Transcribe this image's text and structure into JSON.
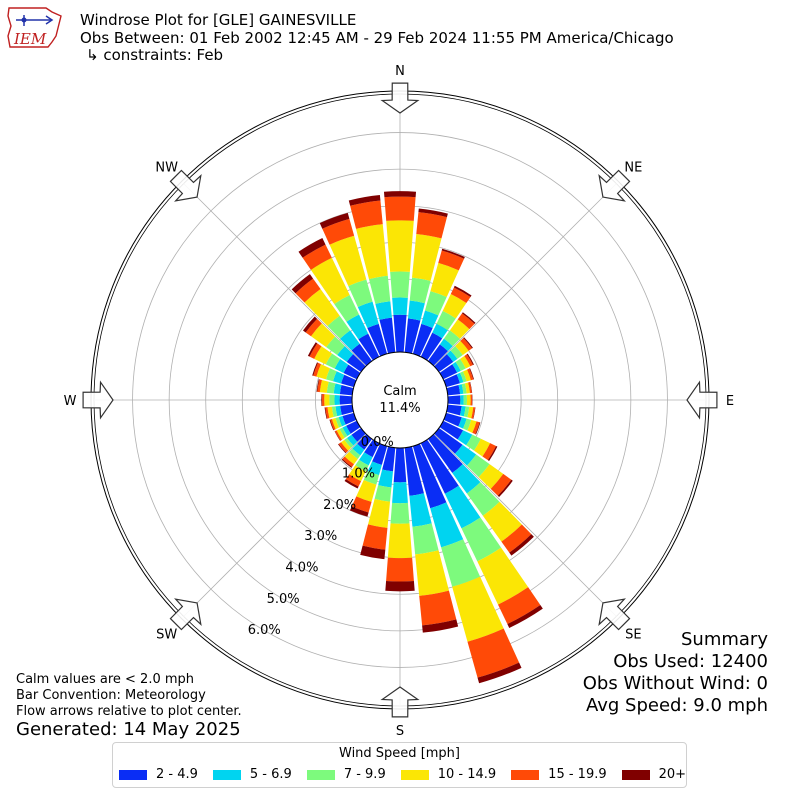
{
  "header": {
    "title": "Windrose Plot for [GLE] GAINESVILLE",
    "obs_between": "Obs Between: 01 Feb 2002 12:45 AM - 29 Feb 2024 11:55 PM America/Chicago",
    "constraints": "↳ constraints: Feb"
  },
  "logo": {
    "text": "IEM"
  },
  "notes": {
    "calm_note": "Calm values are < 2.0 mph",
    "bar_convention": "Bar Convention: Meteorology",
    "flow_arrows": "Flow arrows relative to plot center.",
    "generated": "Generated: 14 May 2025"
  },
  "summary": {
    "title": "Summary",
    "obs_used": "Obs Used: 12400",
    "obs_without_wind": "Obs Without Wind: 0",
    "avg_speed": "Avg Speed: 9.0 mph"
  },
  "colors": {
    "bins": [
      "#0a2df5",
      "#00d4f0",
      "#7dfa7d",
      "#fbe605",
      "#ff4a07",
      "#800000"
    ]
  },
  "chart_data": {
    "type": "windrose",
    "direction_labels": [
      "N",
      "NE",
      "E",
      "SE",
      "S",
      "SW",
      "W",
      "NW"
    ],
    "direction_label_angles": [
      0,
      45,
      90,
      135,
      180,
      225,
      270,
      315
    ],
    "radial_tick_labels": [
      "0.0%",
      "1.0%",
      "2.0%",
      "3.0%",
      "4.0%",
      "5.0%",
      "6.0%"
    ],
    "radial_ticks": [
      0,
      1,
      2,
      3,
      4,
      5,
      6
    ],
    "rmax": 7.0,
    "calm_label": "Calm",
    "calm_value": "11.4%",
    "legend_title": "Wind Speed [mph]",
    "speed_bins": [
      "2 - 4.9",
      "5 - 6.9",
      "7 - 9.9",
      "10 - 14.9",
      "15 - 19.9",
      "20+"
    ],
    "directions_deg": [
      0,
      10,
      20,
      30,
      40,
      50,
      60,
      70,
      80,
      90,
      100,
      110,
      120,
      130,
      140,
      150,
      160,
      170,
      180,
      190,
      200,
      210,
      220,
      230,
      240,
      250,
      260,
      270,
      280,
      290,
      300,
      310,
      320,
      330,
      340,
      350
    ],
    "cumulative_percent": [
      [
        1.02,
        1.49,
        2.2,
        3.6,
        4.25,
        4.4
      ],
      [
        0.93,
        1.42,
        2.05,
        3.25,
        3.85,
        3.95
      ],
      [
        0.85,
        1.23,
        1.78,
        2.58,
        2.93,
        2.98
      ],
      [
        0.73,
        1.0,
        1.39,
        1.9,
        2.1,
        2.15
      ],
      [
        0.56,
        0.75,
        1.03,
        1.4,
        1.6,
        1.64
      ],
      [
        0.48,
        0.62,
        0.8,
        1.0,
        1.11,
        1.14
      ],
      [
        0.42,
        0.53,
        0.68,
        0.82,
        0.9,
        0.93
      ],
      [
        0.39,
        0.49,
        0.58,
        0.7,
        0.77,
        0.79
      ],
      [
        0.34,
        0.43,
        0.52,
        0.61,
        0.66,
        0.67
      ],
      [
        0.34,
        0.43,
        0.52,
        0.62,
        0.66,
        0.67
      ],
      [
        0.38,
        0.49,
        0.59,
        0.7,
        0.75,
        0.76
      ],
      [
        0.44,
        0.58,
        0.71,
        0.86,
        0.95,
        0.97
      ],
      [
        0.6,
        0.88,
        1.14,
        1.42,
        1.6,
        1.64
      ],
      [
        0.79,
        1.25,
        1.7,
        2.16,
        2.43,
        2.48
      ],
      [
        1.14,
        1.83,
        2.58,
        3.45,
        3.82,
        3.92
      ],
      [
        1.53,
        2.58,
        3.58,
        4.89,
        5.48,
        5.6
      ],
      [
        1.76,
        2.87,
        3.99,
        5.55,
        6.57,
        6.73
      ],
      [
        1.32,
        2.17,
        2.93,
        4.07,
        4.88,
        5.08
      ],
      [
        0.94,
        1.51,
        2.07,
        3.01,
        3.65,
        3.92
      ],
      [
        0.65,
        1.09,
        1.48,
        2.2,
        2.8,
        3.06
      ],
      [
        0.53,
        0.82,
        1.09,
        1.58,
        1.88,
        2.0
      ],
      [
        0.42,
        0.67,
        0.85,
        1.15,
        1.31,
        1.37
      ],
      [
        0.36,
        0.55,
        0.67,
        0.85,
        0.94,
        0.97
      ],
      [
        0.32,
        0.47,
        0.56,
        0.67,
        0.75,
        0.77
      ],
      [
        0.32,
        0.43,
        0.52,
        0.61,
        0.66,
        0.67
      ],
      [
        0.32,
        0.43,
        0.52,
        0.62,
        0.67,
        0.69
      ],
      [
        0.33,
        0.46,
        0.56,
        0.68,
        0.74,
        0.76
      ],
      [
        0.34,
        0.48,
        0.62,
        0.76,
        0.82,
        0.84
      ],
      [
        0.34,
        0.51,
        0.7,
        0.89,
        0.96,
        0.98
      ],
      [
        0.36,
        0.59,
        0.79,
        1.06,
        1.15,
        1.18
      ],
      [
        0.4,
        0.67,
        0.94,
        1.29,
        1.43,
        1.48
      ],
      [
        0.48,
        0.8,
        1.17,
        1.68,
        1.86,
        1.95
      ],
      [
        0.58,
        1.03,
        1.52,
        2.42,
        2.77,
        2.92
      ],
      [
        0.7,
        1.28,
        1.87,
        3.0,
        3.4,
        3.6
      ],
      [
        0.85,
        1.48,
        2.11,
        3.35,
        3.83,
        4.0
      ],
      [
        0.95,
        1.4,
        2.1,
        3.52,
        4.17,
        4.32
      ]
    ]
  }
}
